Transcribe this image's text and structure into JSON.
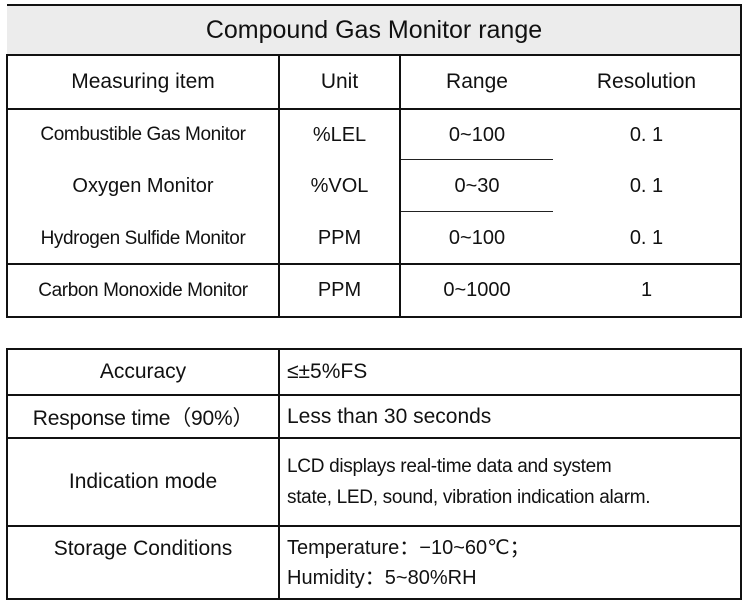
{
  "range_table": {
    "title": "Compound Gas Monitor range",
    "headers": [
      "Measuring item",
      "Unit",
      "Range",
      "Resolution"
    ],
    "rows": [
      {
        "item": "Combustible Gas Monitor",
        "unit": "%LEL",
        "range": "0~100",
        "resolution": "0. 1"
      },
      {
        "item": "Oxygen Monitor",
        "unit": "%VOL",
        "range": "0~30",
        "resolution": "0. 1"
      },
      {
        "item": "Hydrogen Sulfide Monitor",
        "unit": "PPM",
        "range": "0~100",
        "resolution": "0. 1"
      },
      {
        "item": "Carbon Monoxide Monitor",
        "unit": "PPM",
        "range": "0~1000",
        "resolution": "1"
      }
    ]
  },
  "spec_table": {
    "rows": [
      {
        "label": "Accuracy",
        "lines": [
          "≤±5%FS"
        ]
      },
      {
        "label": "Response time（90%）",
        "lines": [
          "Less than 30 seconds"
        ]
      },
      {
        "label": "Indication mode",
        "lines": [
          "LCD displays real-time data and system",
          "state, LED, sound, vibration indication alarm."
        ]
      },
      {
        "label": "Storage Conditions",
        "lines": [
          "Temperature：−10~60℃；",
          "Humidity：5~80%RH"
        ]
      }
    ]
  }
}
